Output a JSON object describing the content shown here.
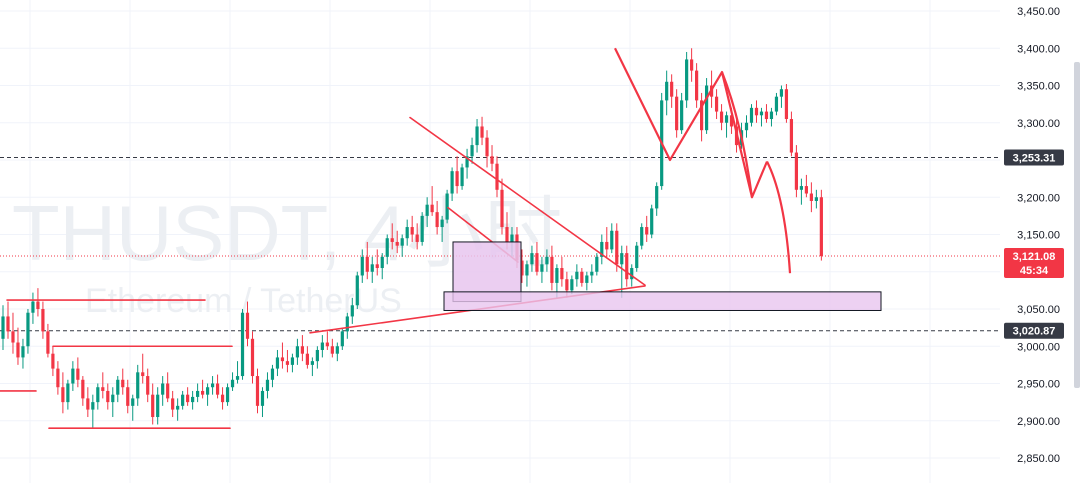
{
  "chart_data": {
    "type": "candlestick",
    "watermark": {
      "symbol": "THUSDT, 4小时",
      "name": "Ethereum / TetherUS"
    },
    "price_axis": {
      "ylim": [
        2825,
        3460
      ],
      "ticks": [
        3450,
        3400,
        3350,
        3300,
        3250,
        3200,
        3150,
        3100,
        3050,
        3000,
        2950,
        2900,
        2850
      ],
      "tick_labels": [
        "3,450.00",
        "3,400.00",
        "3,350.00",
        "3,300.00",
        "3,250.00",
        "3,200.00",
        "3,150.00",
        "3,100.00",
        "3,050.00",
        "3,000.00",
        "2,950.00",
        "2,900.00",
        "2,850.00"
      ]
    },
    "price_badges": [
      {
        "value": 3253.31,
        "label": "3,253.31",
        "color": "#363a45",
        "line": "dashed"
      },
      {
        "value": 3121.08,
        "label": "3,121.08",
        "sublabel": "45:34",
        "color": "#f23645",
        "line": "dotted"
      },
      {
        "value": 3020.87,
        "label": "3,020.87",
        "color": "#363a45",
        "line": "dashed"
      }
    ],
    "colors": {
      "up": "#089981",
      "down": "#f23645",
      "drawing": "#f23645",
      "box_fill": "#e8c5ef",
      "grid": "#f0f3fa"
    },
    "candles": [
      [
        3010,
        3055,
        2995,
        3040
      ],
      [
        3040,
        3060,
        3010,
        3020
      ],
      [
        3020,
        3045,
        2990,
        3005
      ],
      [
        3005,
        3025,
        2975,
        2985
      ],
      [
        2985,
        3010,
        2970,
        3000
      ],
      [
        3000,
        3050,
        2990,
        3045
      ],
      [
        3045,
        3072,
        3030,
        3060
      ],
      [
        3060,
        3078,
        3040,
        3050
      ],
      [
        3050,
        3060,
        3010,
        3020
      ],
      [
        3020,
        3030,
        2985,
        2990
      ],
      [
        2990,
        3000,
        2960,
        2970
      ],
      [
        2970,
        2980,
        2935,
        2945
      ],
      [
        2945,
        2965,
        2910,
        2925
      ],
      [
        2925,
        2955,
        2915,
        2950
      ],
      [
        2950,
        2980,
        2940,
        2970
      ],
      [
        2970,
        2985,
        2945,
        2955
      ],
      [
        2955,
        2960,
        2920,
        2930
      ],
      [
        2930,
        2945,
        2905,
        2915
      ],
      [
        2915,
        2935,
        2890,
        2925
      ],
      [
        2925,
        2950,
        2915,
        2945
      ],
      [
        2945,
        2965,
        2930,
        2940
      ],
      [
        2940,
        2950,
        2915,
        2925
      ],
      [
        2925,
        2945,
        2905,
        2935
      ],
      [
        2935,
        2960,
        2925,
        2955
      ],
      [
        2955,
        2970,
        2935,
        2945
      ],
      [
        2945,
        2955,
        2910,
        2920
      ],
      [
        2920,
        2935,
        2900,
        2930
      ],
      [
        2930,
        2975,
        2920,
        2965
      ],
      [
        2965,
        2990,
        2950,
        2960
      ],
      [
        2960,
        2970,
        2925,
        2935
      ],
      [
        2935,
        2950,
        2895,
        2905
      ],
      [
        2905,
        2945,
        2895,
        2935
      ],
      [
        2935,
        2960,
        2920,
        2950
      ],
      [
        2950,
        2965,
        2925,
        2930
      ],
      [
        2930,
        2940,
        2905,
        2915
      ],
      [
        2915,
        2930,
        2900,
        2920
      ],
      [
        2920,
        2940,
        2915,
        2935
      ],
      [
        2935,
        2945,
        2920,
        2925
      ],
      [
        2925,
        2940,
        2915,
        2932
      ],
      [
        2932,
        2950,
        2925,
        2940
      ],
      [
        2940,
        2955,
        2930,
        2935
      ],
      [
        2935,
        2950,
        2920,
        2945
      ],
      [
        2945,
        2960,
        2935,
        2950
      ],
      [
        2950,
        2962,
        2930,
        2935
      ],
      [
        2935,
        2945,
        2915,
        2925
      ],
      [
        2925,
        2950,
        2920,
        2945
      ],
      [
        2945,
        2965,
        2940,
        2955
      ],
      [
        2955,
        2980,
        2950,
        2960
      ],
      [
        2960,
        3050,
        2955,
        3045
      ],
      [
        3045,
        3060,
        3000,
        3010
      ],
      [
        3010,
        3020,
        2950,
        2960
      ],
      [
        2960,
        2970,
        2910,
        2920
      ],
      [
        2920,
        2945,
        2905,
        2940
      ],
      [
        2940,
        2965,
        2930,
        2955
      ],
      [
        2955,
        2975,
        2945,
        2970
      ],
      [
        2970,
        2995,
        2960,
        2985
      ],
      [
        2985,
        3005,
        2970,
        2980
      ],
      [
        2980,
        2995,
        2965,
        2975
      ],
      [
        2975,
        2990,
        2965,
        2985
      ],
      [
        2985,
        3010,
        2975,
        3000
      ],
      [
        3000,
        3015,
        2980,
        2990
      ],
      [
        2990,
        3000,
        2970,
        2975
      ],
      [
        2975,
        2985,
        2960,
        2980
      ],
      [
        2980,
        3000,
        2970,
        2995
      ],
      [
        2995,
        3015,
        2985,
        3005
      ],
      [
        3005,
        3020,
        2995,
        3000
      ],
      [
        3000,
        3010,
        2985,
        2990
      ],
      [
        2990,
        3005,
        2980,
        3000
      ],
      [
        3000,
        3025,
        2995,
        3020
      ],
      [
        3020,
        3045,
        3010,
        3040
      ],
      [
        3040,
        3065,
        3030,
        3055
      ],
      [
        3055,
        3100,
        3050,
        3095
      ],
      [
        3095,
        3130,
        3085,
        3120
      ],
      [
        3120,
        3140,
        3090,
        3100
      ],
      [
        3100,
        3120,
        3085,
        3110
      ],
      [
        3110,
        3130,
        3095,
        3105
      ],
      [
        3105,
        3125,
        3090,
        3120
      ],
      [
        3120,
        3150,
        3110,
        3145
      ],
      [
        3145,
        3165,
        3130,
        3140
      ],
      [
        3140,
        3155,
        3125,
        3135
      ],
      [
        3135,
        3150,
        3120,
        3145
      ],
      [
        3145,
        3170,
        3135,
        3160
      ],
      [
        3160,
        3175,
        3140,
        3150
      ],
      [
        3150,
        3165,
        3130,
        3140
      ],
      [
        3140,
        3180,
        3135,
        3175
      ],
      [
        3175,
        3200,
        3160,
        3190
      ],
      [
        3190,
        3215,
        3175,
        3180
      ],
      [
        3180,
        3195,
        3150,
        3160
      ],
      [
        3160,
        3175,
        3140,
        3170
      ],
      [
        3170,
        3210,
        3165,
        3205
      ],
      [
        3205,
        3240,
        3195,
        3235
      ],
      [
        3235,
        3255,
        3205,
        3215
      ],
      [
        3215,
        3245,
        3210,
        3240
      ],
      [
        3240,
        3265,
        3225,
        3255
      ],
      [
        3255,
        3280,
        3245,
        3270
      ],
      [
        3270,
        3305,
        3260,
        3295
      ],
      [
        3295,
        3308,
        3270,
        3280
      ],
      [
        3280,
        3290,
        3240,
        3255
      ],
      [
        3255,
        3270,
        3235,
        3245
      ],
      [
        3245,
        3255,
        3200,
        3210
      ],
      [
        3210,
        3225,
        3150,
        3160
      ],
      [
        3160,
        3180,
        3130,
        3140
      ],
      [
        3140,
        3160,
        3120,
        3150
      ],
      [
        3150,
        3160,
        3105,
        3115
      ],
      [
        3115,
        3130,
        3085,
        3095
      ],
      [
        3095,
        3115,
        3080,
        3110
      ],
      [
        3110,
        3135,
        3100,
        3125
      ],
      [
        3125,
        3140,
        3095,
        3100
      ],
      [
        3100,
        3120,
        3085,
        3110
      ],
      [
        3110,
        3130,
        3100,
        3120
      ],
      [
        3120,
        3135,
        3075,
        3085
      ],
      [
        3085,
        3110,
        3065,
        3105
      ],
      [
        3105,
        3120,
        3080,
        3090
      ],
      [
        3090,
        3100,
        3065,
        3075
      ],
      [
        3075,
        3095,
        3070,
        3090
      ],
      [
        3090,
        3110,
        3080,
        3100
      ],
      [
        3100,
        3105,
        3080,
        3085
      ],
      [
        3085,
        3100,
        3075,
        3095
      ],
      [
        3095,
        3110,
        3085,
        3100
      ],
      [
        3100,
        3125,
        3095,
        3120
      ],
      [
        3120,
        3150,
        3110,
        3140
      ],
      [
        3140,
        3160,
        3120,
        3130
      ],
      [
        3130,
        3165,
        3125,
        3155
      ],
      [
        3155,
        3165,
        3100,
        3110
      ],
      [
        3110,
        3135,
        3065,
        3125
      ],
      [
        3125,
        3135,
        3080,
        3090
      ],
      [
        3090,
        3110,
        3080,
        3105
      ],
      [
        3105,
        3140,
        3100,
        3135
      ],
      [
        3135,
        3165,
        3130,
        3160
      ],
      [
        3160,
        3175,
        3140,
        3150
      ],
      [
        3150,
        3190,
        3145,
        3185
      ],
      [
        3185,
        3220,
        3175,
        3215
      ],
      [
        3215,
        3340,
        3210,
        3330
      ],
      [
        3330,
        3370,
        3310,
        3355
      ],
      [
        3355,
        3365,
        3320,
        3335
      ],
      [
        3335,
        3345,
        3280,
        3290
      ],
      [
        3290,
        3340,
        3285,
        3330
      ],
      [
        3330,
        3395,
        3320,
        3385
      ],
      [
        3385,
        3400,
        3355,
        3370
      ],
      [
        3370,
        3380,
        3320,
        3330
      ],
      [
        3330,
        3340,
        3275,
        3290
      ],
      [
        3290,
        3360,
        3285,
        3350
      ],
      [
        3350,
        3370,
        3320,
        3335
      ],
      [
        3335,
        3345,
        3305,
        3315
      ],
      [
        3315,
        3325,
        3290,
        3300
      ],
      [
        3300,
        3315,
        3280,
        3310
      ],
      [
        3310,
        3320,
        3285,
        3295
      ],
      [
        3295,
        3305,
        3260,
        3270
      ],
      [
        3270,
        3300,
        3265,
        3290
      ],
      [
        3290,
        3310,
        3280,
        3300
      ],
      [
        3300,
        3325,
        3295,
        3320
      ],
      [
        3320,
        3330,
        3300,
        3310
      ],
      [
        3310,
        3320,
        3295,
        3315
      ],
      [
        3315,
        3325,
        3300,
        3305
      ],
      [
        3305,
        3320,
        3295,
        3315
      ],
      [
        3315,
        3340,
        3310,
        3335
      ],
      [
        3335,
        3350,
        3320,
        3345
      ],
      [
        3345,
        3352,
        3300,
        3305
      ],
      [
        3305,
        3315,
        3255,
        3260
      ],
      [
        3260,
        3270,
        3200,
        3210
      ],
      [
        3210,
        3225,
        3190,
        3215
      ],
      [
        3215,
        3230,
        3200,
        3205
      ],
      [
        3205,
        3220,
        3180,
        3195
      ],
      [
        3195,
        3210,
        3185,
        3200
      ],
      [
        3200,
        3210,
        3115,
        3121
      ]
    ],
    "drawings": {
      "horizontal_lines": [
        [
          2952,
          2936,
          1.5
        ],
        [
          2,
          3052,
          3062
        ],
        [
          1,
          3000,
          3012
        ],
        [
          0,
          2940,
          2940
        ],
        [
          0,
          2890,
          2890
        ]
      ],
      "support_line": [
        [
          3018,
          3081
        ]
      ],
      "triangle_upper": [
        [
          3306,
          3081
        ]
      ],
      "flag": [
        [
          3185,
          3112
        ]
      ],
      "box_small": {
        "top": 3140,
        "bottom": 3060
      },
      "box_zone": {
        "top": 3073,
        "bottom": 3048
      },
      "hs_pattern": [
        3400,
        3250,
        3368,
        3200,
        3248,
        3098
      ]
    }
  }
}
